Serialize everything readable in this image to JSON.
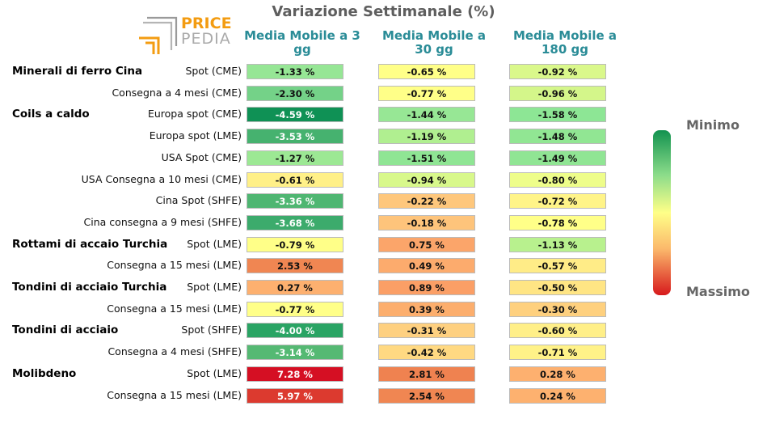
{
  "logo": {
    "top": "PRICE",
    "bottom": "PEDIA"
  },
  "chart_data": {
    "type": "table",
    "title": "Variazione Settimanale (%)",
    "columns": [
      "Media Mobile a 3 gg",
      "Media Mobile a 30 gg",
      "Media Mobile a 180 gg"
    ],
    "groups": [
      {
        "name": "Minerali di ferro Cina",
        "rows": [
          {
            "label": "Spot (CME)",
            "values": [
              -1.33,
              -0.65,
              -0.92
            ],
            "text": [
              "-1.33 %",
              "-0.65 %",
              "-0.92 %"
            ],
            "colors": [
              "#96e695",
              "#ffff88",
              "#daf88b"
            ]
          },
          {
            "label": "Consegna a 4 mesi (CME)",
            "values": [
              -2.3,
              -0.77,
              -0.96
            ],
            "text": [
              "-2.30 %",
              "-0.77 %",
              "-0.96 %"
            ],
            "colors": [
              "#74d288",
              "#ffff88",
              "#d4f68a"
            ]
          }
        ]
      },
      {
        "name": "Coils a caldo",
        "rows": [
          {
            "label": "Europa spot (CME)",
            "values": [
              -4.59,
              -1.44,
              -1.58
            ],
            "text": [
              "-4.59 %",
              "-1.44 %",
              "-1.58 %"
            ],
            "colors": [
              "#0f9155",
              "#97e795",
              "#8de695"
            ]
          },
          {
            "label": "Europa spot (LME)",
            "values": [
              -3.53,
              -1.19,
              -1.48
            ],
            "text": [
              "-3.53 %",
              "-1.19 %",
              "-1.48 %"
            ],
            "colors": [
              "#46b26f",
              "#b0ef90",
              "#91e693"
            ]
          },
          {
            "label": "USA Spot (CME)",
            "values": [
              -1.27,
              -1.51,
              -1.49
            ],
            "text": [
              "-1.27 %",
              "-1.51 %",
              "-1.49 %"
            ],
            "colors": [
              "#9ce894",
              "#8fe594",
              "#90e594"
            ]
          },
          {
            "label": "USA Consegna a 10 mesi (CME)",
            "values": [
              -0.61,
              -0.94,
              -0.8
            ],
            "text": [
              "-0.61 %",
              "-0.94 %",
              "-0.80 %"
            ],
            "colors": [
              "#fff088",
              "#d8f88b",
              "#eefd8a"
            ]
          }
        ]
      },
      {
        "name": "",
        "rows": [
          {
            "label": "Cina Spot (SHFE)",
            "values": [
              -3.36,
              -0.22,
              -0.72
            ],
            "text": [
              "-3.36 %",
              "-0.22 %",
              "-0.72 %"
            ],
            "colors": [
              "#4fb672",
              "#fec77c",
              "#fff488"
            ]
          },
          {
            "label": "Cina consegna a 9 mesi (SHFE)",
            "values": [
              -3.68,
              -0.18,
              -0.78
            ],
            "text": [
              "-3.68 %",
              "-0.18 %",
              "-0.78 %"
            ],
            "colors": [
              "#3cab6c",
              "#fec47b",
              "#ffff88"
            ]
          }
        ]
      },
      {
        "name": "Rottami di accaio Turchia",
        "rows": [
          {
            "label": "Spot (LME)",
            "values": [
              -0.79,
              0.75,
              -1.13
            ],
            "text": [
              "-0.79 %",
              "0.75 %",
              "-1.13 %"
            ],
            "colors": [
              "#ffff88",
              "#fba56a",
              "#b8f18e"
            ]
          },
          {
            "label": "Consegna a 15 mesi (LME)",
            "values": [
              2.53,
              0.49,
              -0.57
            ],
            "text": [
              "2.53 %",
              "0.49 %",
              "-0.57 %"
            ],
            "colors": [
              "#f08652",
              "#fcab6d",
              "#ffec87"
            ]
          }
        ]
      },
      {
        "name": "Tondini di acciaio Turchia",
        "rows": [
          {
            "label": "Spot (LME)",
            "values": [
              0.27,
              0.89,
              -0.5
            ],
            "text": [
              "0.27 %",
              "0.89 %",
              "-0.50 %"
            ],
            "colors": [
              "#fdb06f",
              "#fb9f66",
              "#ffe584"
            ]
          },
          {
            "label": "Consegna a 15 mesi (LME)",
            "values": [
              -0.77,
              0.39,
              -0.3
            ],
            "text": [
              "-0.77 %",
              "0.39 %",
              "-0.30 %"
            ],
            "colors": [
              "#ffff88",
              "#fcae6d",
              "#fed07e"
            ]
          }
        ]
      },
      {
        "name": "Tondini di acciaio",
        "rows": [
          {
            "label": "Spot (SHFE)",
            "values": [
              -4.0,
              -0.31,
              -0.6
            ],
            "text": [
              "-4.00 %",
              "-0.31 %",
              "-0.60 %"
            ],
            "colors": [
              "#2aa464",
              "#fed080",
              "#ffef88"
            ]
          },
          {
            "label": "Consegna a 4 mesi (SHFE)",
            "values": [
              -3.14,
              -0.42,
              -0.71
            ],
            "text": [
              "-3.14 %",
              "-0.42 %",
              "-0.71 %"
            ],
            "colors": [
              "#55b973",
              "#ffd982",
              "#fff288"
            ]
          }
        ]
      },
      {
        "name": "Molibdeno",
        "rows": [
          {
            "label": "Spot (LME)",
            "values": [
              7.28,
              2.81,
              0.28
            ],
            "text": [
              "7.28 %",
              "2.81 %",
              "0.28 %"
            ],
            "colors": [
              "#d50f23",
              "#ef8250",
              "#fdb06f"
            ]
          },
          {
            "label": "Consegna a 15 mesi (LME)",
            "values": [
              5.97,
              2.54,
              0.24
            ],
            "text": [
              "5.97 %",
              "2.54 %",
              "0.24 %"
            ],
            "colors": [
              "#dc3a2f",
              "#f08652",
              "#fdb16f"
            ]
          }
        ]
      }
    ],
    "legend": {
      "min_label": "Minimo",
      "max_label": "Massimo",
      "placement": "right"
    }
  }
}
